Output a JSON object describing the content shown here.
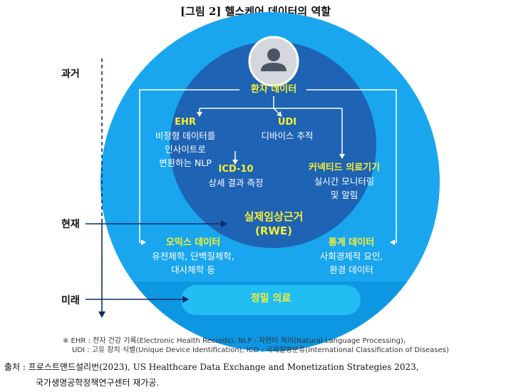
{
  "title": "[그림 2] 헬스케어 데이터의 역할",
  "timeline": {
    "past": "과거",
    "present": "현재",
    "future": "미래"
  },
  "nodes": {
    "patient": "환자 데이터",
    "ehr": {
      "title": "EHR",
      "desc1": "비정형 데이터를",
      "desc2": "인사이트로",
      "desc3": "변환하는 NLP"
    },
    "udi": {
      "title": "UDI",
      "desc1": "디바이스 추적"
    },
    "icd": {
      "title": "ICD-10",
      "desc1": "상세 결과 측정"
    },
    "connected": {
      "title": "커넥티드 의료기기",
      "desc1": "실시간 모니터링",
      "desc2": "및 알림"
    },
    "rwe": {
      "line1": "실제임상근거",
      "line2": "(RWE)"
    },
    "omics": {
      "title": "오믹스 데이터",
      "desc1": "유전체학, 단백질체학,",
      "desc2": "대사체학 등"
    },
    "stats": {
      "title": "통계 데이터",
      "desc1": "사회경제적 요인,",
      "desc2": "환경 데이터"
    },
    "precision": "정밀 의료"
  },
  "notes": {
    "line1": "※ EHR : 전자 건강 기록(Electronic Health Records), NLP : 자연어 처리(Natural Language Processing),",
    "line2": "UDI : 고유 장치 식별(Unique Device Identification), ICD : 국제질병분류(International Classification of Diseases)"
  },
  "source": {
    "line1": "출처 : 프로스트앤드설리번(2023), US Healthcare Data Exchange and Monetization Strategies 2023,",
    "line2": "국가생명공학정책연구센터 재가공."
  },
  "colors": {
    "outer_circle": "#1aa6ee",
    "inner_circle": "#1e63b4",
    "bottom_band": "#0d97e3",
    "precision_pill": "#22bdf3",
    "label_yellow": "#f6ef33",
    "text_navy": "#0b2d6b"
  },
  "icons": {
    "avatar": "person-silhouette-icon"
  }
}
